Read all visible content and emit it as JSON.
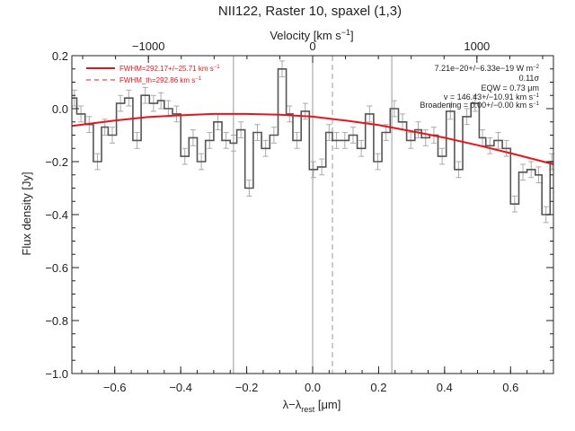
{
  "chart_data": {
    "type": "line",
    "title": "NII122, Raster 10, spaxel (1,3)",
    "xlabel": "λ−λ",
    "xlabel_sub": "rest",
    "xlabel_unit": " [μm]",
    "ylabel": "Flux density [Jy]",
    "top_axis_label": "Velocity [km s",
    "top_axis_label_sup": "−1",
    "top_axis_label_end": "]",
    "xlim": [
      -0.73,
      0.73
    ],
    "ylim": [
      -1.0,
      0.2
    ],
    "x_ticks": [
      -0.6,
      -0.4,
      -0.2,
      0.0,
      0.2,
      0.4,
      0.6
    ],
    "x_tick_labels": [
      "−0.6",
      "−0.4",
      "−0.2",
      "0.0",
      "0.2",
      "0.4",
      "0.6"
    ],
    "y_ticks": [
      0.2,
      0.0,
      -0.2,
      -0.4,
      -0.6,
      -0.8,
      -1.0
    ],
    "y_tick_labels": [
      "0.2",
      "0.0",
      "−0.2",
      "−0.4",
      "−0.6",
      "−0.8",
      "−1.0"
    ],
    "top_ticks": [
      -1000,
      0,
      1000
    ],
    "top_tick_labels": [
      "−1000",
      "0",
      "1000"
    ],
    "top_tick_positions": [
      -0.498,
      0.0,
      0.498
    ],
    "vertical_lines": [
      {
        "x": -0.24,
        "style": "solid"
      },
      {
        "x": 0.0,
        "style": "solid"
      },
      {
        "x": 0.06,
        "style": "dashed"
      },
      {
        "x": 0.24,
        "style": "solid"
      }
    ],
    "step_x": [
      -0.73,
      -0.715,
      -0.69,
      -0.665,
      -0.64,
      -0.62,
      -0.595,
      -0.57,
      -0.545,
      -0.52,
      -0.495,
      -0.47,
      -0.45,
      -0.425,
      -0.4,
      -0.375,
      -0.35,
      -0.325,
      -0.3,
      -0.275,
      -0.25,
      -0.23,
      -0.205,
      -0.18,
      -0.155,
      -0.13,
      -0.105,
      -0.08,
      -0.06,
      -0.035,
      -0.01,
      0.015,
      0.04,
      0.06,
      0.085,
      0.11,
      0.135,
      0.16,
      0.185,
      0.21,
      0.235,
      0.26,
      0.285,
      0.31,
      0.33,
      0.355,
      0.38,
      0.405,
      0.43,
      0.455,
      0.48,
      0.505,
      0.525,
      0.55,
      0.575,
      0.6,
      0.625,
      0.65,
      0.675,
      0.695,
      0.72
    ],
    "step_y": [
      0.04,
      -0.02,
      -0.06,
      -0.2,
      -0.07,
      -0.1,
      0.02,
      0.04,
      -0.12,
      0.05,
      0.02,
      0.03,
      0.0,
      -0.02,
      -0.18,
      -0.11,
      -0.2,
      -0.12,
      -0.05,
      -0.12,
      -0.13,
      -0.08,
      -0.3,
      -0.09,
      -0.15,
      -0.1,
      0.15,
      -0.02,
      -0.12,
      -0.01,
      -0.23,
      -0.22,
      -0.09,
      -0.12,
      -0.12,
      -0.1,
      -0.15,
      -0.02,
      -0.2,
      -0.09,
      0.0,
      -0.05,
      -0.12,
      -0.08,
      -0.11,
      -0.1,
      -0.18,
      -0.01,
      -0.23,
      -0.03,
      0.02,
      -0.11,
      -0.14,
      -0.12,
      -0.15,
      -0.36,
      -0.24,
      -0.23,
      -0.25,
      -0.4,
      -0.2
    ],
    "step_err": 0.03,
    "series": [
      {
        "name": "FWHM=292.17+/−25.71 km s",
        "name_sup": "−1",
        "style": "solid",
        "color": "#e8141b",
        "x": [
          -0.73,
          -0.6,
          -0.5,
          -0.4,
          -0.3,
          -0.2,
          -0.1,
          0.0,
          0.1,
          0.2,
          0.3,
          0.4,
          0.5,
          0.6,
          0.73
        ],
        "y": [
          -0.065,
          -0.045,
          -0.032,
          -0.025,
          -0.02,
          -0.02,
          -0.023,
          -0.03,
          -0.045,
          -0.062,
          -0.085,
          -0.11,
          -0.138,
          -0.168,
          -0.21
        ]
      },
      {
        "name": "FWHM_th=292.86 km s",
        "name_sup": "−1",
        "style": "dashed",
        "color": "#e8141b"
      }
    ],
    "annotations": {
      "line1": "7.21e−20+/−6.33e−19 W m",
      "line1_sup": "−2",
      "line2": "0.11σ",
      "line3": "EQW = 0.73 μm",
      "line4": "v = 146.43+/−10.91 km s",
      "line4_sup": "−1",
      "line5": "Broadening = 0.00+/−0.00 km s",
      "line5_sup": "−1"
    },
    "colors": {
      "model": "#e8141b",
      "data": "#555555",
      "errorbar": "#aaaaaa",
      "vline": "#999999"
    }
  }
}
